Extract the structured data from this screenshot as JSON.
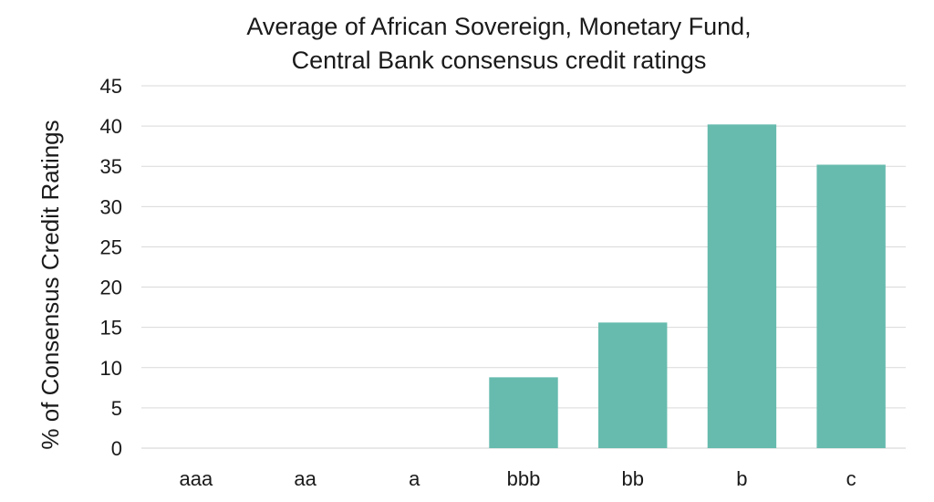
{
  "chart_data": {
    "type": "bar",
    "title_lines": [
      "Average of African Sovereign, Monetary Fund,",
      "Central Bank consensus credit ratings"
    ],
    "xlabel": "",
    "ylabel": "% of Consensus Credit Ratings",
    "categories": [
      "aaa",
      "aa",
      "a",
      "bbb",
      "bb",
      "b",
      "c"
    ],
    "values": [
      0,
      0,
      0,
      8.8,
      15.6,
      40.2,
      35.2
    ],
    "ylim": [
      0,
      45
    ],
    "yticks": [
      0,
      5,
      10,
      15,
      20,
      25,
      30,
      35,
      40,
      45
    ],
    "grid": true,
    "legend": "none",
    "bar_color": "#66bbae",
    "grid_color": "#d9d9d9"
  }
}
